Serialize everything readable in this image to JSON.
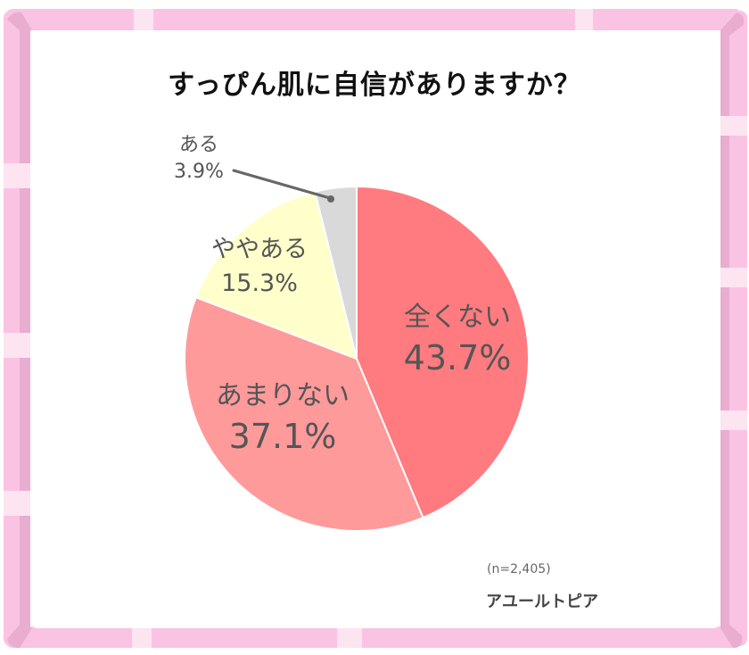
{
  "colors": {
    "frame": "#fbc3e3",
    "frame_shade": "#e9add0",
    "frame_stripe": "#fde4f1",
    "text_dark": "#111111",
    "label_text": "#555555",
    "leader_line": "#666666"
  },
  "chart_data": {
    "type": "pie",
    "title": "すっぴん肌に自信がありますか？",
    "start_angle": "12 o'clock, clockwise",
    "slices": [
      {
        "label": "全くない",
        "value": 43.7,
        "display": "43.7%",
        "color": "#ff7b7f"
      },
      {
        "label": "あまりない",
        "value": 37.1,
        "display": "37.1%",
        "color": "#ff9a9b"
      },
      {
        "label": "ややある",
        "value": 15.3,
        "display": "15.3%",
        "color": "#ffffcc"
      },
      {
        "label": "ある",
        "value": 3.9,
        "display": "3.9%",
        "color": "#d9d9d9"
      }
    ],
    "sample_size_note": "(n=2,405)",
    "source": "アユールトピア",
    "legend": "none (labels on slices)",
    "unit": "%"
  }
}
